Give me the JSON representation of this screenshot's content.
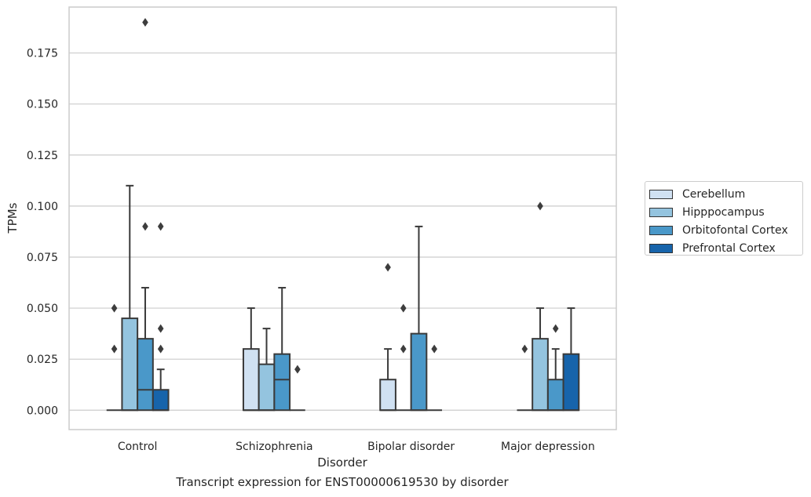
{
  "chart_data": {
    "type": "box",
    "title": "",
    "caption": "Transcript expression for ENST00000619530 by disorder",
    "xlabel": "Disorder",
    "ylabel": "TPMs",
    "ylim": [
      -0.0095,
      0.1975
    ],
    "yticks": [
      0.0,
      0.025,
      0.05,
      0.075,
      0.1,
      0.125,
      0.15,
      0.175
    ],
    "ytick_labels": [
      "0.000",
      "0.025",
      "0.050",
      "0.075",
      "0.100",
      "0.125",
      "0.150",
      "0.175"
    ],
    "grid": "horizontal",
    "legend_position": "right",
    "categories": [
      "Control",
      "Schizophrenia",
      "Bipolar disorder",
      "Major depression"
    ],
    "series": [
      {
        "name": "Cerebellum",
        "color": "#d0e1f2",
        "boxes": [
          {
            "q1": 0.0,
            "median": 0.0,
            "q3": 0.0,
            "whisker_low": 0.0,
            "whisker_high": 0.0,
            "outliers": [
              0.03,
              0.05
            ]
          },
          {
            "q1": 0.0,
            "median": 0.0,
            "q3": 0.03,
            "whisker_low": 0.0,
            "whisker_high": 0.05,
            "outliers": []
          },
          {
            "q1": 0.0,
            "median": 0.0,
            "q3": 0.015,
            "whisker_low": 0.0,
            "whisker_high": 0.03,
            "outliers": [
              0.07
            ]
          },
          {
            "q1": 0.0,
            "median": 0.0,
            "q3": 0.0,
            "whisker_low": 0.0,
            "whisker_high": 0.0,
            "outliers": [
              0.03
            ]
          }
        ]
      },
      {
        "name": "Hipppocampus",
        "color": "#94c4df",
        "boxes": [
          {
            "q1": 0.0,
            "median": 0.0,
            "q3": 0.045,
            "whisker_low": 0.0,
            "whisker_high": 0.11,
            "outliers": []
          },
          {
            "q1": 0.0,
            "median": 0.0,
            "q3": 0.0225,
            "whisker_low": 0.0,
            "whisker_high": 0.04,
            "outliers": []
          },
          {
            "q1": 0.0,
            "median": 0.0,
            "q3": 0.0,
            "whisker_low": 0.0,
            "whisker_high": 0.0,
            "outliers": [
              0.03,
              0.05
            ]
          },
          {
            "q1": 0.0,
            "median": 0.0,
            "q3": 0.035,
            "whisker_low": 0.0,
            "whisker_high": 0.05,
            "outliers": [
              0.1
            ]
          }
        ]
      },
      {
        "name": "Orbitofontal Cortex",
        "color": "#4a98c9",
        "boxes": [
          {
            "q1": 0.0,
            "median": 0.01,
            "q3": 0.035,
            "whisker_low": 0.0,
            "whisker_high": 0.06,
            "outliers": [
              0.09,
              0.19
            ]
          },
          {
            "q1": 0.0,
            "median": 0.015,
            "q3": 0.0275,
            "whisker_low": 0.0,
            "whisker_high": 0.06,
            "outliers": []
          },
          {
            "q1": 0.0,
            "median": 0.0,
            "q3": 0.0375,
            "whisker_low": 0.0,
            "whisker_high": 0.09,
            "outliers": []
          },
          {
            "q1": 0.0,
            "median": 0.0,
            "q3": 0.015,
            "whisker_low": 0.0,
            "whisker_high": 0.03,
            "outliers": [
              0.04
            ]
          }
        ]
      },
      {
        "name": "Prefrontal Cortex",
        "color": "#1764ab",
        "boxes": [
          {
            "q1": 0.0,
            "median": 0.0,
            "q3": 0.01,
            "whisker_low": 0.0,
            "whisker_high": 0.02,
            "outliers": [
              0.03,
              0.04,
              0.09
            ]
          },
          {
            "q1": 0.0,
            "median": 0.0,
            "q3": 0.0,
            "whisker_low": 0.0,
            "whisker_high": 0.0,
            "outliers": [
              0.02
            ]
          },
          {
            "q1": 0.0,
            "median": 0.0,
            "q3": 0.0,
            "whisker_low": 0.0,
            "whisker_high": 0.0,
            "outliers": [
              0.03
            ]
          },
          {
            "q1": 0.0,
            "median": 0.0,
            "q3": 0.0275,
            "whisker_low": 0.0,
            "whisker_high": 0.05,
            "outliers": []
          }
        ]
      }
    ]
  }
}
